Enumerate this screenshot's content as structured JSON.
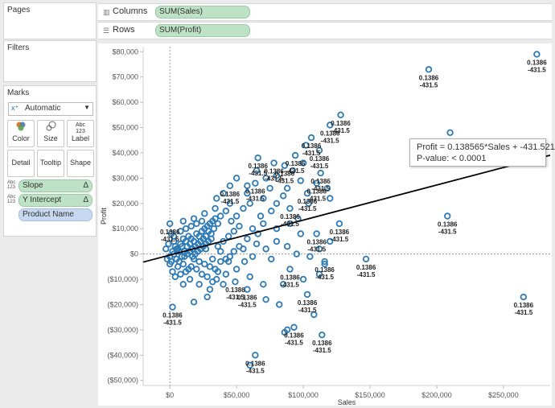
{
  "left_panel": {
    "pages_title": "Pages",
    "filters_title": "Filters",
    "marks_title": "Marks",
    "mark_type": "Automatic",
    "mark_buttons": [
      "Color",
      "Size",
      "Label",
      "Detail",
      "Tooltip",
      "Shape"
    ],
    "field_pills": [
      {
        "name": "Slope",
        "type_badge": "Abc 123",
        "flag": "Δ"
      },
      {
        "name": "Y Intercept",
        "type_badge": "Abc 123",
        "flag": "Δ"
      },
      {
        "name": "Product Name"
      }
    ]
  },
  "shelves": {
    "columns_label": "Columns",
    "columns_pill": "SUM(Sales)",
    "rows_label": "Rows",
    "rows_pill": "SUM(Profit)"
  },
  "tooltip": {
    "line1": "Profit = 0.138565*Sales + -431.521",
    "line2": "P-value: < 0.0001"
  },
  "colors": {
    "mark": "#2e7ab6",
    "green_pill": "#bee2c6",
    "blue_pill": "#c6d9f1",
    "trend": "#000000"
  },
  "chart_data": {
    "type": "scatter",
    "xlabel": "Sales",
    "ylabel": "Profit",
    "xlim": [
      -20000,
      285000
    ],
    "ylim": [
      -52000,
      82000
    ],
    "x_ticks": [
      0,
      50000,
      100000,
      150000,
      200000,
      250000
    ],
    "x_tick_labels": [
      "$0",
      "$50,000",
      "$100,000",
      "$150,000",
      "$200,000",
      "$250,000"
    ],
    "y_ticks": [
      -50000,
      -40000,
      -30000,
      -20000,
      -10000,
      0,
      10000,
      20000,
      30000,
      40000,
      50000,
      60000,
      70000,
      80000
    ],
    "y_tick_labels": [
      "($50,000)",
      "($40,000)",
      "($30,000)",
      "($20,000)",
      "($10,000)",
      "$0",
      "$10,000",
      "$20,000",
      "$30,000",
      "$40,000",
      "$50,000",
      "$60,000",
      "$70,000",
      "$80,000"
    ],
    "trend": {
      "slope": 0.138565,
      "intercept": -431.521
    },
    "label_slope": "0.1386",
    "label_intercept": "-431.5",
    "labeled_points": [
      [
        275000,
        79000
      ],
      [
        194000,
        73000
      ],
      [
        128000,
        55000
      ],
      [
        120000,
        51000
      ],
      [
        106000,
        46000
      ],
      [
        210000,
        48000
      ],
      [
        112000,
        41000
      ],
      [
        94000,
        39000
      ],
      [
        66000,
        38000
      ],
      [
        78000,
        36000
      ],
      [
        86000,
        35000
      ],
      [
        113000,
        32000
      ],
      [
        64000,
        28000
      ],
      [
        110000,
        28000
      ],
      [
        45000,
        27000
      ],
      [
        103000,
        24000
      ],
      [
        208000,
        15000
      ],
      [
        90000,
        18000
      ],
      [
        0,
        12000
      ],
      [
        127000,
        12000
      ],
      [
        110000,
        8000
      ],
      [
        147000,
        -2000
      ],
      [
        116000,
        -3000
      ],
      [
        90000,
        -6000
      ],
      [
        49000,
        -11000
      ],
      [
        58000,
        -14000
      ],
      [
        265000,
        -17000
      ],
      [
        103000,
        -16000
      ],
      [
        2000,
        -21000
      ],
      [
        93000,
        -29000
      ],
      [
        114000,
        -32000
      ],
      [
        64000,
        -40000
      ]
    ],
    "points": [
      [
        0,
        -1000
      ],
      [
        2000,
        1000
      ],
      [
        4000,
        3000
      ],
      [
        6000,
        2000
      ],
      [
        3000,
        5000
      ],
      [
        8000,
        4000
      ],
      [
        10000,
        6000
      ],
      [
        12000,
        5000
      ],
      [
        5000,
        -2000
      ],
      [
        7000,
        -3000
      ],
      [
        9000,
        -1000
      ],
      [
        11000,
        1000
      ],
      [
        13000,
        3000
      ],
      [
        15000,
        4000
      ],
      [
        14000,
        7000
      ],
      [
        16000,
        6000
      ],
      [
        18000,
        5000
      ],
      [
        20000,
        8000
      ],
      [
        22000,
        7000
      ],
      [
        24000,
        9000
      ],
      [
        17000,
        2000
      ],
      [
        19000,
        3000
      ],
      [
        21000,
        4000
      ],
      [
        23000,
        5000
      ],
      [
        25000,
        6000
      ],
      [
        27000,
        7000
      ],
      [
        26000,
        10000
      ],
      [
        28000,
        11000
      ],
      [
        30000,
        12000
      ],
      [
        29000,
        9000
      ],
      [
        31000,
        8000
      ],
      [
        33000,
        10000
      ],
      [
        32000,
        13000
      ],
      [
        34000,
        14000
      ],
      [
        36000,
        12000
      ],
      [
        8000,
        9000
      ],
      [
        12000,
        10000
      ],
      [
        16000,
        11000
      ],
      [
        20000,
        12000
      ],
      [
        24000,
        13000
      ],
      [
        6000,
        -5000
      ],
      [
        10000,
        -4000
      ],
      [
        14000,
        -6000
      ],
      [
        18000,
        -2000
      ],
      [
        22000,
        -3000
      ],
      [
        26000,
        -4000
      ],
      [
        30000,
        -5000
      ],
      [
        34000,
        -6000
      ],
      [
        38000,
        -3000
      ],
      [
        42000,
        -2000
      ],
      [
        36000,
        3000
      ],
      [
        40000,
        5000
      ],
      [
        44000,
        7000
      ],
      [
        48000,
        9000
      ],
      [
        52000,
        11000
      ],
      [
        46000,
        13000
      ],
      [
        38000,
        15000
      ],
      [
        42000,
        17000
      ],
      [
        50000,
        15000
      ],
      [
        55000,
        18000
      ],
      [
        60000,
        20000
      ],
      [
        45000,
        20000
      ],
      [
        35000,
        22000
      ],
      [
        40000,
        24000
      ],
      [
        58000,
        24000
      ],
      [
        70000,
        22000
      ],
      [
        75000,
        26000
      ],
      [
        80000,
        20000
      ],
      [
        85000,
        23000
      ],
      [
        72000,
        30000
      ],
      [
        80000,
        31000
      ],
      [
        65000,
        33000
      ],
      [
        50000,
        30000
      ],
      [
        100000,
        36000
      ],
      [
        98000,
        29000
      ],
      [
        118000,
        26000
      ],
      [
        120000,
        22000
      ],
      [
        104000,
        20000
      ],
      [
        96000,
        14000
      ],
      [
        98000,
        8000
      ],
      [
        90000,
        12000
      ],
      [
        80000,
        10000
      ],
      [
        70000,
        12000
      ],
      [
        62000,
        10000
      ],
      [
        58000,
        6000
      ],
      [
        65000,
        4000
      ],
      [
        72000,
        2000
      ],
      [
        80000,
        5000
      ],
      [
        88000,
        3000
      ],
      [
        95000,
        0
      ],
      [
        105000,
        -1000
      ],
      [
        112000,
        2000
      ],
      [
        120000,
        5000
      ],
      [
        112000,
        -8000
      ],
      [
        100000,
        -10000
      ],
      [
        85000,
        -12000
      ],
      [
        70000,
        -12000
      ],
      [
        60000,
        -9000
      ],
      [
        50000,
        -6000
      ],
      [
        42000,
        -8000
      ],
      [
        35000,
        -10000
      ],
      [
        30000,
        -14000
      ],
      [
        22000,
        -12000
      ],
      [
        15000,
        -10000
      ],
      [
        10000,
        -12000
      ],
      [
        28000,
        -17000
      ],
      [
        18000,
        -19000
      ],
      [
        72000,
        -18000
      ],
      [
        82000,
        -20000
      ],
      [
        108000,
        -24000
      ],
      [
        86000,
        -31000
      ],
      [
        88000,
        -30000
      ],
      [
        60000,
        -44000
      ],
      [
        116000,
        -4000
      ],
      [
        76000,
        -2000
      ],
      [
        55000,
        2000
      ],
      [
        45000,
        -1000
      ],
      [
        38000,
        1000
      ],
      [
        32000,
        -2000
      ],
      [
        27000,
        2000
      ],
      [
        -3000,
        2000
      ],
      [
        -2000,
        -2000
      ],
      [
        1000,
        -3000
      ],
      [
        3000,
        0
      ],
      [
        5000,
        2000
      ],
      [
        7000,
        1000
      ],
      [
        9000,
        3000
      ],
      [
        11000,
        -1000
      ],
      [
        13000,
        0
      ],
      [
        15000,
        1000
      ],
      [
        17000,
        -1000
      ],
      [
        19000,
        0
      ],
      [
        21000,
        1000
      ],
      [
        23000,
        2000
      ],
      [
        25000,
        3000
      ],
      [
        27000,
        4000
      ],
      [
        29000,
        5000
      ],
      [
        31000,
        6000
      ],
      [
        3000,
        7000
      ],
      [
        1000,
        8000
      ],
      [
        -1000,
        4000
      ],
      [
        0,
        -4000
      ],
      [
        2000,
        -7000
      ],
      [
        4000,
        -9000
      ],
      [
        8000,
        -8000
      ],
      [
        12000,
        -7000
      ],
      [
        16000,
        -5000
      ],
      [
        20000,
        -6000
      ],
      [
        24000,
        -8000
      ],
      [
        28000,
        -9000
      ],
      [
        32000,
        -11000
      ],
      [
        36000,
        -7000
      ],
      [
        40000,
        -12000
      ],
      [
        44000,
        -3000
      ],
      [
        48000,
        1000
      ],
      [
        52000,
        3000
      ],
      [
        56000,
        -3000
      ],
      [
        62000,
        -1000
      ],
      [
        66000,
        8000
      ],
      [
        68000,
        15000
      ],
      [
        76000,
        17000
      ],
      [
        88000,
        26000
      ],
      [
        92000,
        33000
      ],
      [
        102000,
        43000
      ],
      [
        58000,
        27000
      ],
      [
        34000,
        18000
      ],
      [
        26000,
        16000
      ],
      [
        18000,
        14000
      ],
      [
        10000,
        13000
      ]
    ]
  }
}
